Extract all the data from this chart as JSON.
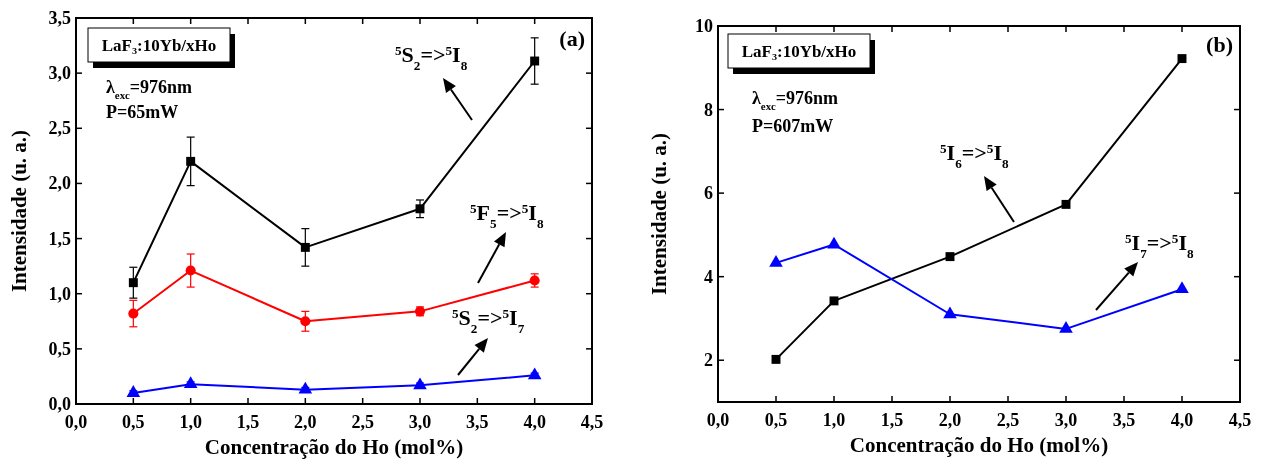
{
  "chart_data": [
    {
      "type": "line",
      "xlabel": "Concentração do Ho (mol%)",
      "ylabel": "Intensidade (u. a.)",
      "xlim": [
        0,
        4.5
      ],
      "xticks": [
        {
          "value": 0,
          "label": "0,0"
        },
        {
          "value": 0.5,
          "label": "0,5"
        },
        {
          "value": 1,
          "label": "1,0"
        },
        {
          "value": 1.5,
          "label": "1,5"
        },
        {
          "value": 2,
          "label": "2,0"
        },
        {
          "value": 2.5,
          "label": "2,5"
        },
        {
          "value": 3,
          "label": "3,0"
        },
        {
          "value": 3.5,
          "label": "3,5"
        },
        {
          "value": 4,
          "label": "4,0"
        },
        {
          "value": 4.5,
          "label": "4,5"
        }
      ],
      "ylim": [
        0,
        3.5
      ],
      "yticks": [
        {
          "value": 0,
          "label": "0,0"
        },
        {
          "value": 0.5,
          "label": "0,5"
        },
        {
          "value": 1,
          "label": "1,0"
        },
        {
          "value": 1.5,
          "label": "1,5"
        },
        {
          "value": 2,
          "label": "2,0"
        },
        {
          "value": 2.5,
          "label": "2,5"
        },
        {
          "value": 3,
          "label": "3,0"
        },
        {
          "value": 3.5,
          "label": "3,5"
        }
      ],
      "x": [
        0.5,
        1,
        2,
        3,
        4
      ],
      "grid": false,
      "annotations": [
        "LaF₃:10Yb/xHo",
        "λ$_{exc}$=976nm",
        "P=65mW",
        "(a)"
      ],
      "series": [
        {
          "name": "$^{5}$S$_{2}$=>$^{5}$I$_{8}$",
          "color": "#000000",
          "marker": "square",
          "values": [
            1.1,
            2.2,
            1.42,
            1.77,
            3.11
          ],
          "errors": [
            0.14,
            0.22,
            0.17,
            0.08,
            0.21
          ]
        },
        {
          "name": "$^{5}$F$_{5}$=>$^{5}$I$_{8}$",
          "color": "#ff0000",
          "marker": "circle",
          "values": [
            0.82,
            1.21,
            0.75,
            0.84,
            1.12
          ],
          "errors": [
            0.12,
            0.15,
            0.09,
            0.04,
            0.06
          ]
        },
        {
          "name": "$^{5}$S$_{2}$=>$^{5}$I$_{7}$",
          "color": "#0000ff",
          "marker": "triangle",
          "values": [
            0.1,
            0.18,
            0.13,
            0.17,
            0.26
          ],
          "errors": [
            0.02,
            0.02,
            0.02,
            0.02,
            0.02
          ]
        }
      ]
    },
    {
      "type": "line",
      "xlabel": "Concentração do Ho (mol%)",
      "ylabel": "Intensidade (u. a.)",
      "xlim": [
        0,
        4.5
      ],
      "xticks": [
        {
          "value": 0,
          "label": "0,0"
        },
        {
          "value": 0.5,
          "label": "0,5"
        },
        {
          "value": 1,
          "label": "1,0"
        },
        {
          "value": 1.5,
          "label": "1,5"
        },
        {
          "value": 2,
          "label": "2,0"
        },
        {
          "value": 2.5,
          "label": "2,5"
        },
        {
          "value": 3,
          "label": "3,0"
        },
        {
          "value": 3.5,
          "label": "3,5"
        },
        {
          "value": 4,
          "label": "4,0"
        },
        {
          "value": 4.5,
          "label": "4,5"
        }
      ],
      "ylim": [
        1,
        10
      ],
      "yticks": [
        2,
        4,
        6,
        8,
        10
      ],
      "x": [
        0.5,
        1,
        2,
        3,
        4
      ],
      "grid": false,
      "annotations": [
        "LaF₃:10Yb/xHo",
        "λ$_{exc}$=976nm",
        "P=607mW",
        "(b)"
      ],
      "series": [
        {
          "name": "$^{5}$I$_{6}$=>$^{5}$I$_{8}$",
          "color": "#000000",
          "marker": "square",
          "values": [
            2.02,
            3.42,
            4.48,
            5.73,
            9.22
          ]
        },
        {
          "name": "$^{5}$I$_{7}$=>$^{5}$I$_{8}$",
          "color": "#0000ff",
          "marker": "triangle",
          "values": [
            4.33,
            4.77,
            3.1,
            2.75,
            3.7
          ]
        }
      ]
    }
  ]
}
